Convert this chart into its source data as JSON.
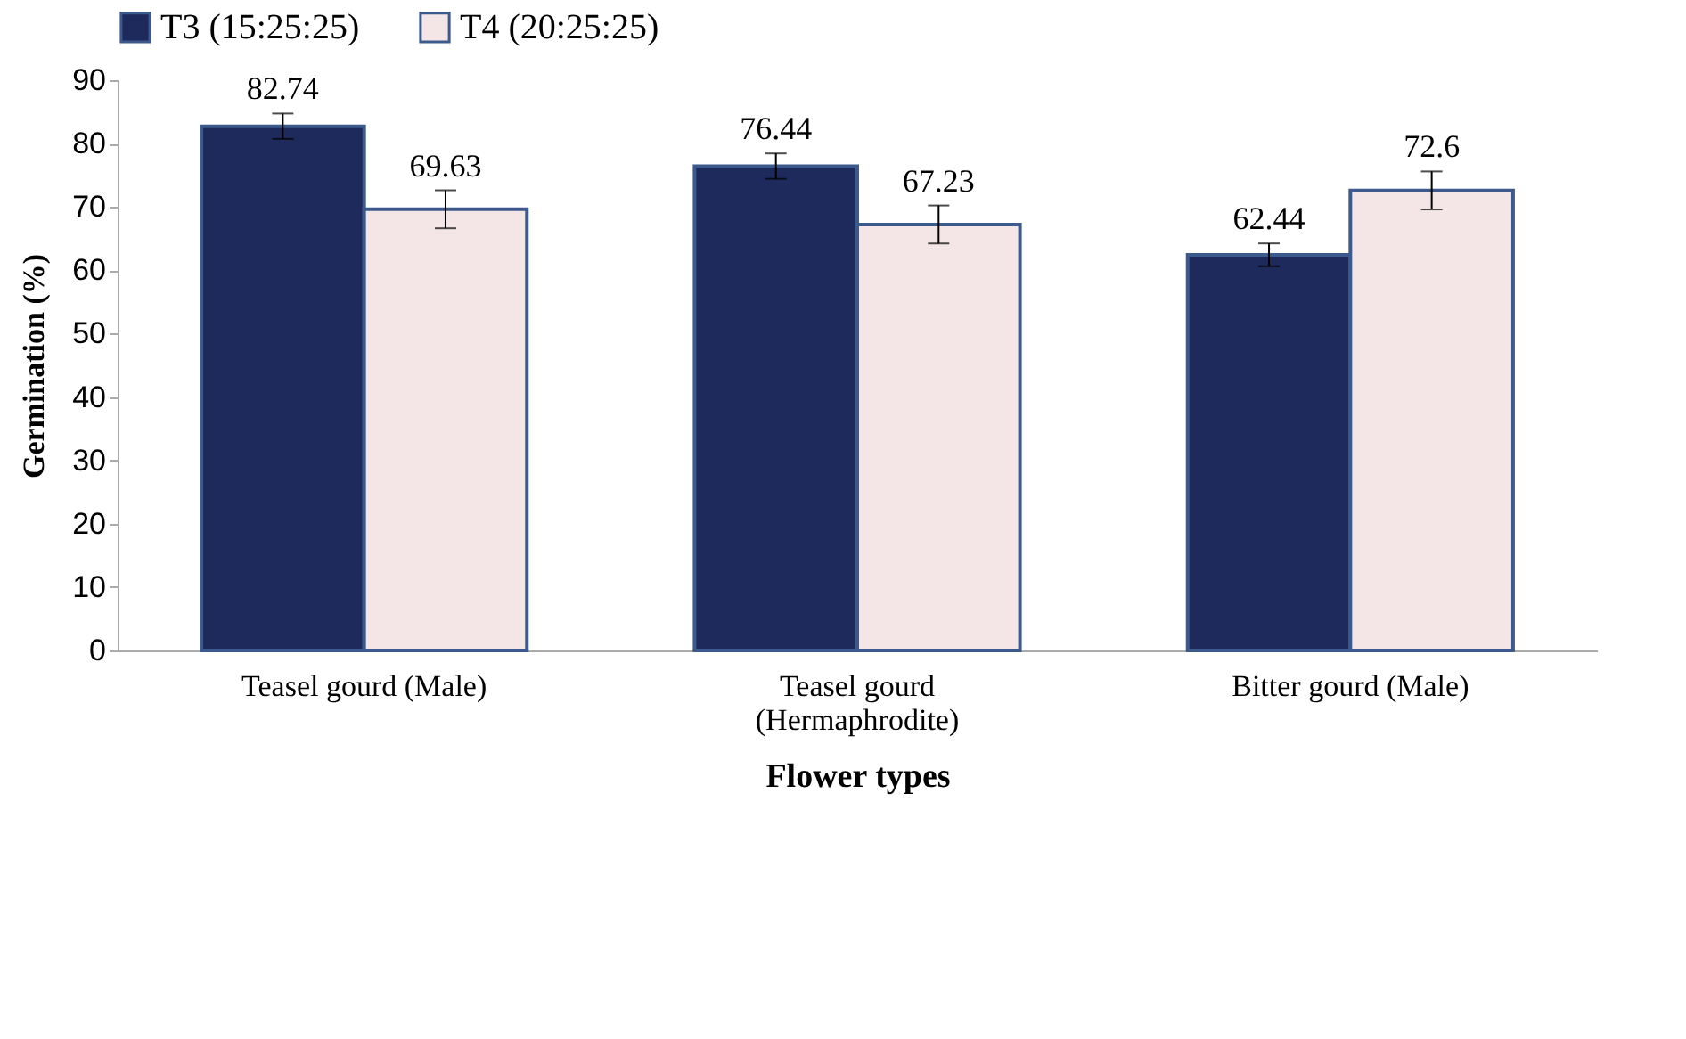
{
  "chart_data": {
    "type": "bar",
    "xlabel": "Flower types",
    "ylabel": "Germination (%)",
    "categories": [
      "Teasel gourd (Male)",
      "Teasel gourd (Hermaphrodite)",
      "Bitter gourd (Male)"
    ],
    "series": [
      {
        "name": "T3 (15:25:25)",
        "color": "#1f2a5c",
        "values": [
          82.74,
          76.44,
          62.44
        ],
        "errors": [
          2,
          2,
          1.8
        ]
      },
      {
        "name": "T4 (20:25:25)",
        "color": "#f4e6e6",
        "values": [
          69.63,
          67.23,
          72.6
        ],
        "errors": [
          3,
          3,
          3
        ]
      }
    ],
    "ylim": [
      0,
      90
    ],
    "yticks": [
      0,
      10,
      20,
      30,
      40,
      50,
      60,
      70,
      80,
      90
    ],
    "grid": false,
    "legend": "top",
    "data_labels": true
  }
}
